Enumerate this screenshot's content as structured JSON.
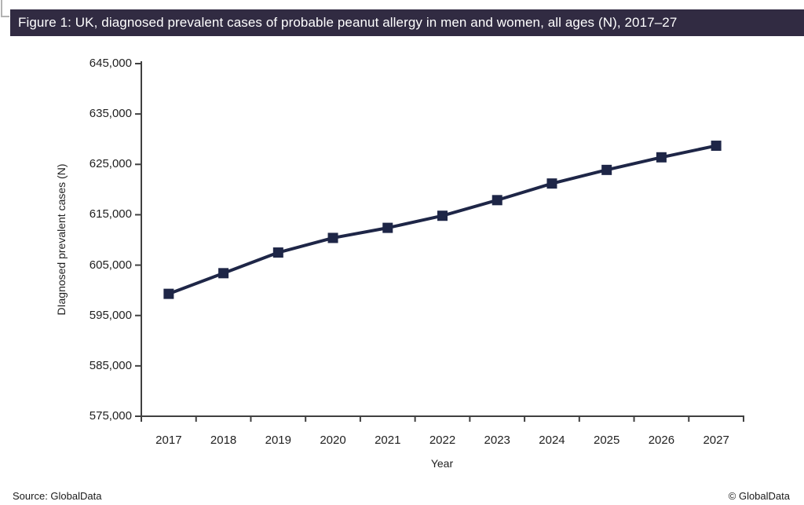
{
  "title_bar": {
    "text": "Figure 1: UK, diagnosed prevalent cases of probable peanut allergy in men and women, all ages (N), 2017–27",
    "background": "#312b42",
    "text_color": "#ffffff"
  },
  "footer": {
    "source": "Source: GlobalData",
    "copyright": "© GlobalData"
  },
  "chart_data": {
    "type": "line",
    "title": "",
    "xlabel": "Year",
    "ylabel": "DIagnosed prevalent cases (N)",
    "categories": [
      "2017",
      "2018",
      "2019",
      "2020",
      "2021",
      "2022",
      "2023",
      "2024",
      "2025",
      "2026",
      "2027"
    ],
    "values": [
      599300,
      603400,
      607500,
      610400,
      612400,
      614800,
      617900,
      621200,
      623900,
      626400,
      628700
    ],
    "ylim": [
      575000,
      645000
    ],
    "ytick_step": 10000,
    "ytick_labels": [
      "575,000",
      "585,000",
      "595,000",
      "605,000",
      "615,000",
      "625,000",
      "635,000",
      "645,000"
    ],
    "series_color": "#1e2647",
    "axis_color": "#404040",
    "text_color": "#1f1f1f",
    "marker": "square",
    "legend": "none",
    "grid": false
  }
}
